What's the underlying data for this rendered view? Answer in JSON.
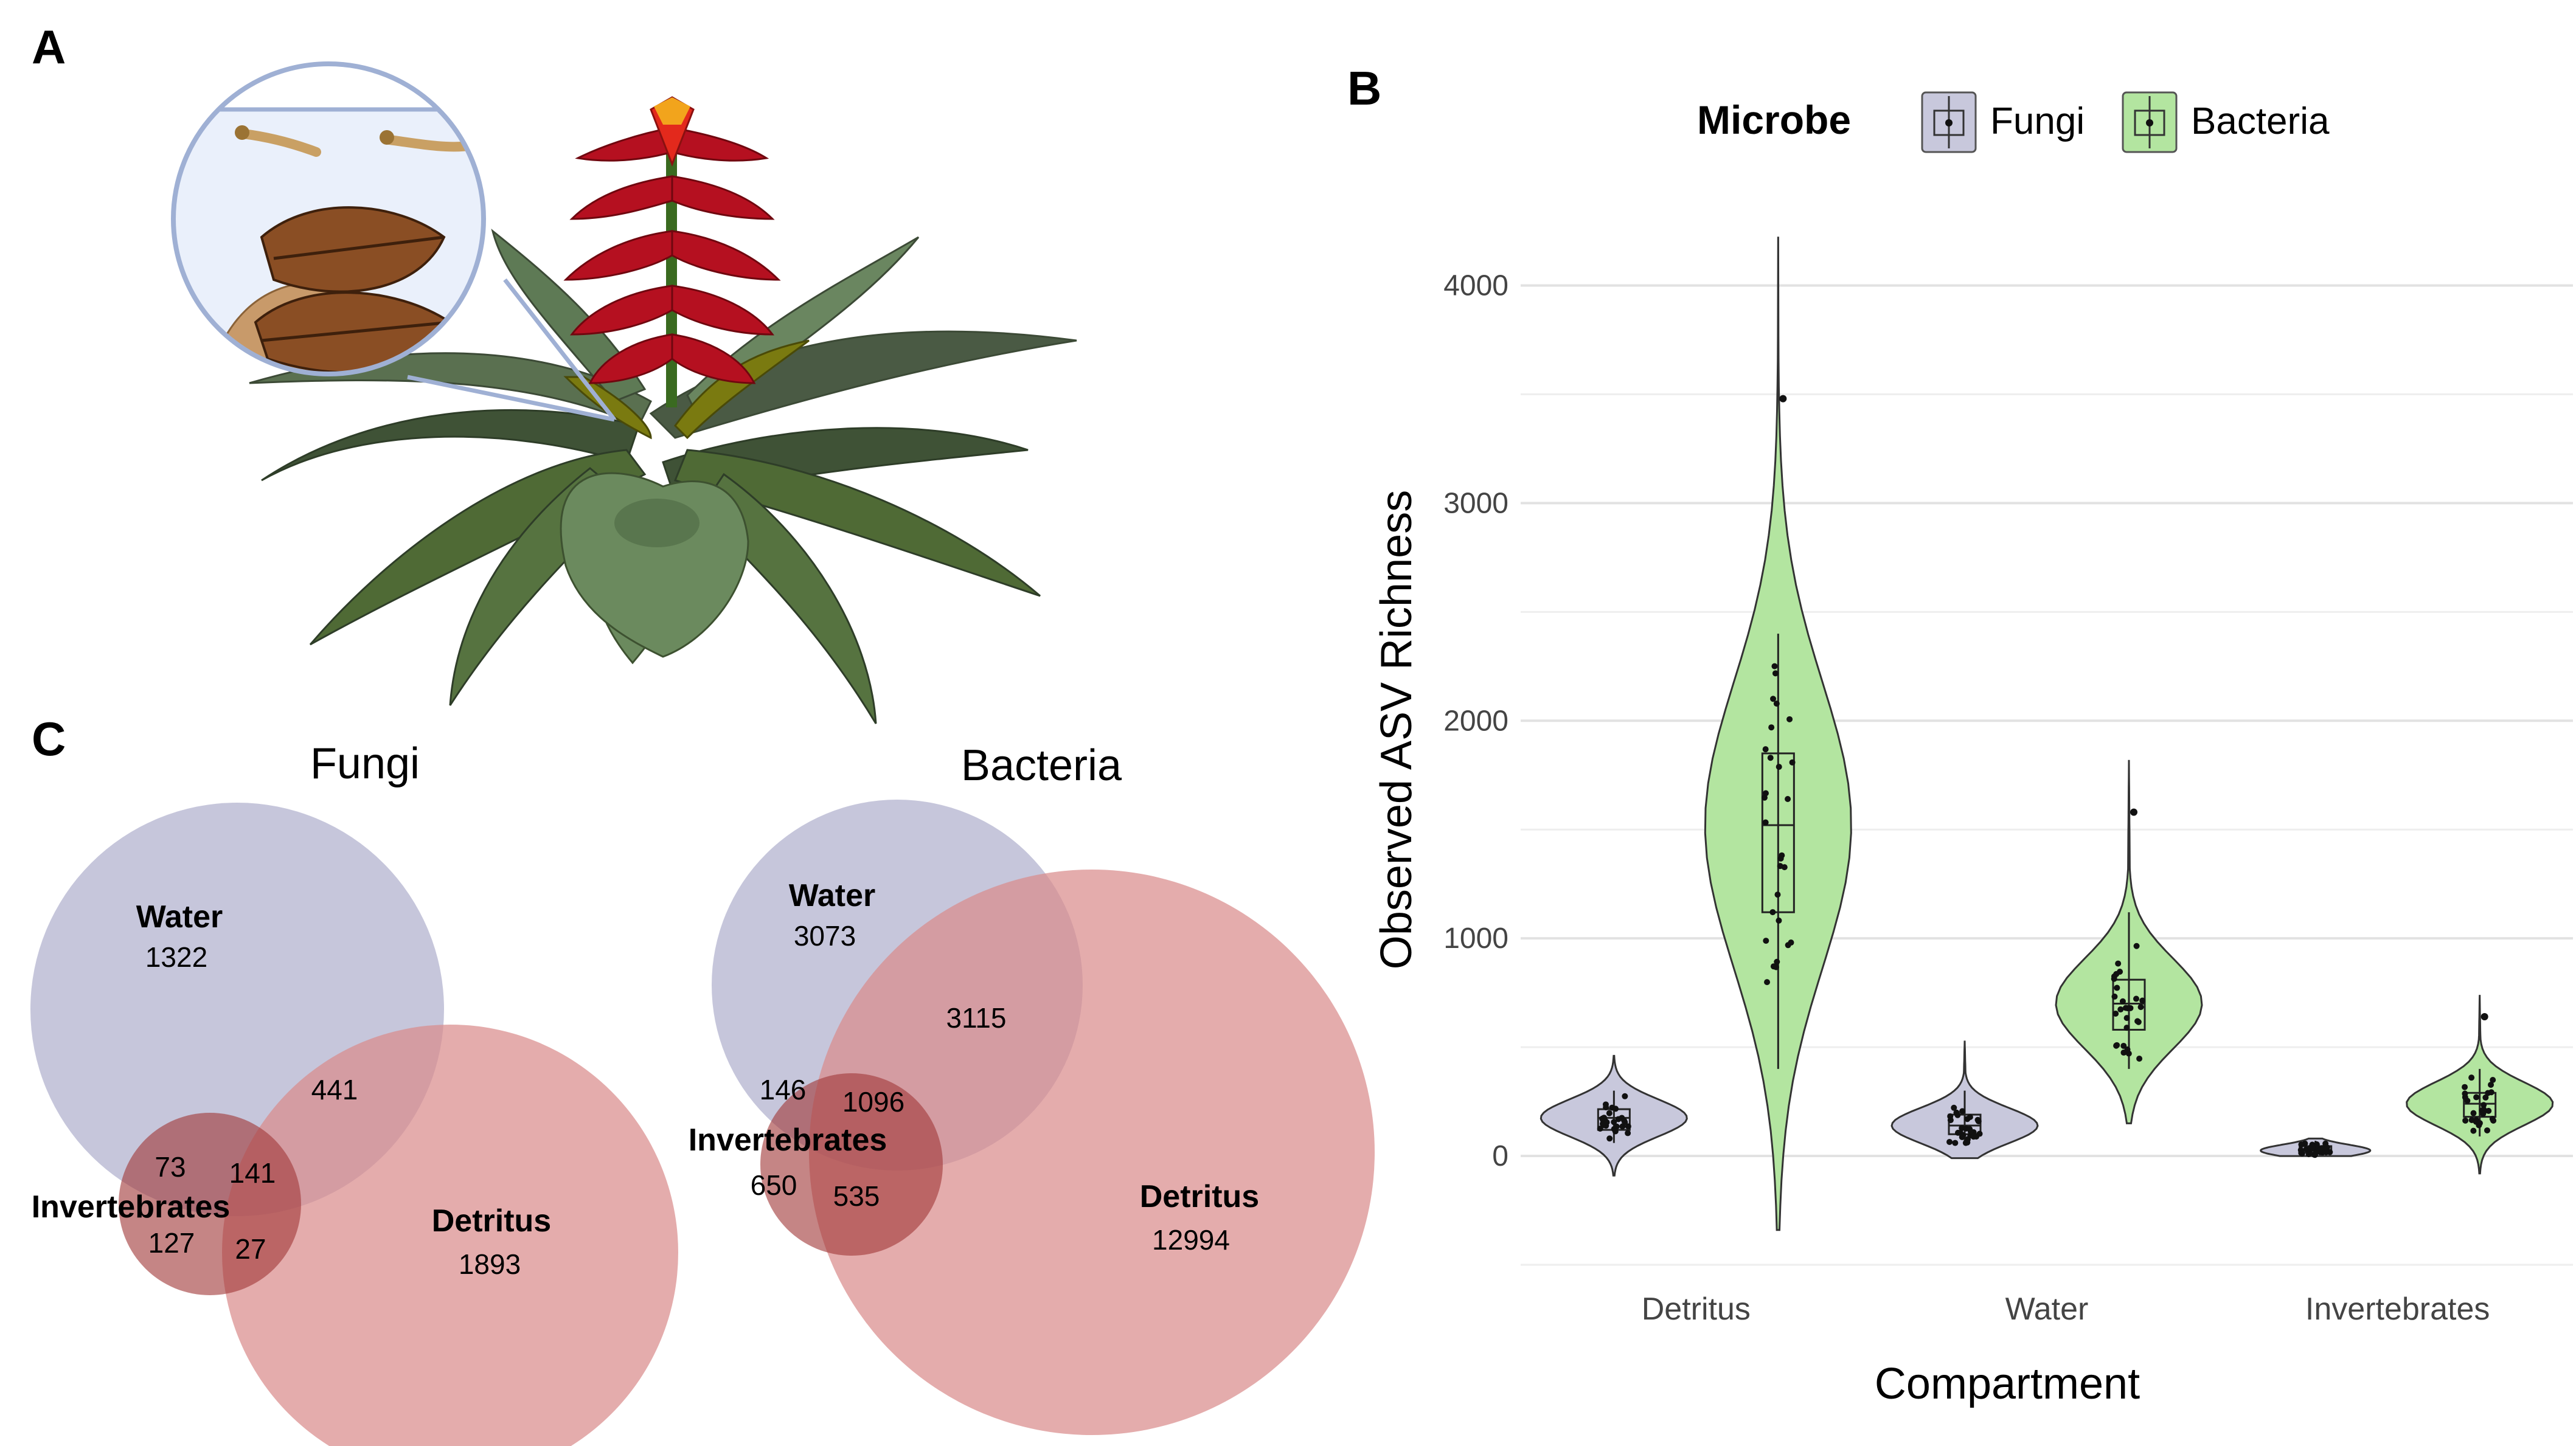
{
  "panels": {
    "a": "A",
    "b": "B",
    "c": "C"
  },
  "chart_data": [
    {
      "type": "violin",
      "panel": "B",
      "xlabel": "Compartment",
      "ylabel": "Observed ASV Richness",
      "legend": {
        "title": "Microbe",
        "placement": "top",
        "entries": [
          "Fungi",
          "Bacteria"
        ]
      },
      "categories": [
        "Detritus",
        "Water",
        "Invertebrates"
      ],
      "yticks": [
        0,
        1000,
        2000,
        3000,
        4000
      ],
      "ylim": [
        -500,
        4250
      ],
      "grid": true,
      "colors": {
        "Fungi": "#c8c8dc",
        "Bacteria": "#b3e5a0"
      },
      "series": [
        {
          "name": "Fungi",
          "box": [
            {
              "category": "Detritus",
              "min": 60,
              "q1": 120,
              "median": 175,
              "q3": 215,
              "max": 300
            },
            {
              "category": "Water",
              "min": 60,
              "q1": 100,
              "median": 140,
              "q3": 190,
              "max": 300
            },
            {
              "category": "Invertebrates",
              "min": 5,
              "q1": 15,
              "median": 25,
              "q3": 45,
              "max": 70
            }
          ],
          "violin_range": [
            {
              "category": "Detritus",
              "low": -90,
              "high": 460
            },
            {
              "category": "Water",
              "low": -10,
              "high": 530
            },
            {
              "category": "Invertebrates",
              "low": 0,
              "high": 80
            }
          ]
        },
        {
          "name": "Bacteria",
          "box": [
            {
              "category": "Detritus",
              "min": 400,
              "q1": 1120,
              "median": 1520,
              "q3": 1850,
              "max": 2400
            },
            {
              "category": "Water",
              "min": 400,
              "q1": 580,
              "median": 700,
              "q3": 810,
              "max": 1120
            },
            {
              "category": "Invertebrates",
              "min": 90,
              "q1": 180,
              "median": 240,
              "q3": 290,
              "max": 400
            }
          ],
          "violin_range": [
            {
              "category": "Detritus",
              "low": -340,
              "high": 4220
            },
            {
              "category": "Water",
              "low": 150,
              "high": 1820
            },
            {
              "category": "Invertebrates",
              "low": -80,
              "high": 740
            }
          ],
          "outliers": [
            {
              "category": "Detritus",
              "value": 3480
            },
            {
              "category": "Water",
              "value": 1580
            },
            {
              "category": "Invertebrates",
              "value": 640
            }
          ]
        }
      ]
    },
    {
      "type": "venn",
      "panel": "C",
      "title": "Fungi",
      "sets": [
        "Water",
        "Invertebrates",
        "Detritus"
      ],
      "regions": {
        "water_only": "1322",
        "water_detritus": "441",
        "invert_water": "73",
        "all_three": "141",
        "invert_only": "127",
        "invert_detritus": "27",
        "detritus_only": "1893"
      }
    },
    {
      "type": "venn",
      "panel": "C",
      "title": "Bacteria",
      "sets": [
        "Water",
        "Invertebrates",
        "Detritus"
      ],
      "regions": {
        "water_only": "3073",
        "water_detritus": "3115",
        "invert_water": "146",
        "all_three": "1096",
        "invert_only": "650",
        "invert_detritus": "535",
        "detritus_only": "12994"
      }
    }
  ]
}
